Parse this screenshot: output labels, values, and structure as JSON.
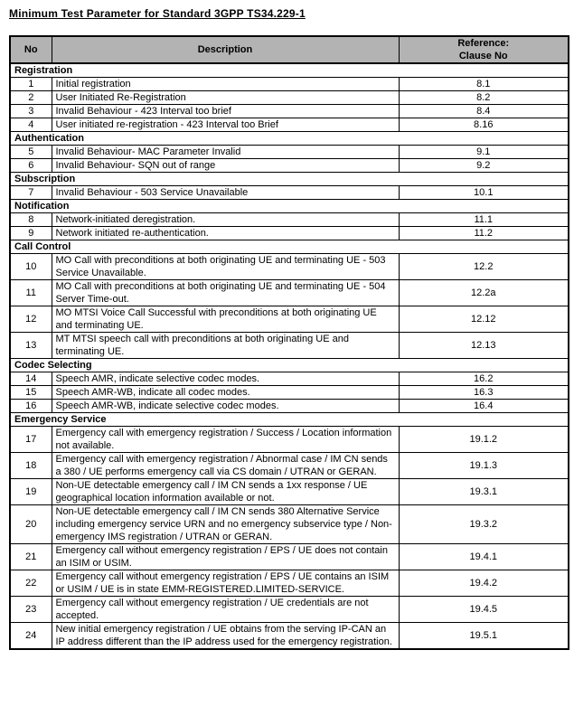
{
  "title": "Minimum Test Parameter for Standard 3GPP TS34.229-1",
  "table": {
    "header": {
      "no": "No",
      "description": "Description",
      "reference": "Reference:\nClause No"
    },
    "colors": {
      "header_bg": "#b3b3b3",
      "border": "#000000",
      "text": "#000000"
    },
    "sections": [
      {
        "name": "Registration",
        "rows": [
          {
            "no": "1",
            "description": "Initial registration",
            "ref": "8.1"
          },
          {
            "no": "2",
            "description": "User Initiated Re-Registration",
            "ref": "8.2"
          },
          {
            "no": "3",
            "description": "Invalid Behaviour - 423 Interval too brief",
            "ref": "8.4"
          },
          {
            "no": "4",
            "description": "User initiated re-registration - 423 Interval too Brief",
            "ref": "8.16"
          }
        ]
      },
      {
        "name": "Authentication",
        "rows": [
          {
            "no": "5",
            "description": "Invalid Behaviour- MAC Parameter Invalid",
            "ref": "9.1"
          },
          {
            "no": "6",
            "description": "Invalid Behaviour- SQN out of range",
            "ref": "9.2"
          }
        ]
      },
      {
        "name": "Subscription",
        "rows": [
          {
            "no": "7",
            "description": "Invalid Behaviour - 503 Service Unavailable",
            "ref": "10.1"
          }
        ]
      },
      {
        "name": "Notification",
        "rows": [
          {
            "no": "8",
            "description": "Network-initiated deregistration.",
            "ref": "11.1"
          },
          {
            "no": "9",
            "description": "Network initiated re-authentication.",
            "ref": "11.2"
          }
        ]
      },
      {
        "name": "Call Control",
        "rows": [
          {
            "no": "10",
            "description": "MO Call with preconditions at both originating UE and terminating UE - 503 Service Unavailable.",
            "ref": "12.2"
          },
          {
            "no": "11",
            "description": "MO Call with preconditions at both originating UE and terminating UE - 504 Server Time-out.",
            "ref": "12.2a"
          },
          {
            "no": "12",
            "description": "MO MTSI Voice Call Successful with preconditions at both originating UE and terminating UE.",
            "ref": "12.12"
          },
          {
            "no": "13",
            "description": "MT MTSI speech call with preconditions at both originating UE and terminating UE.",
            "ref": "12.13"
          }
        ]
      },
      {
        "name": "Codec Selecting",
        "rows": [
          {
            "no": "14",
            "description": "Speech AMR, indicate selective codec modes.",
            "ref": "16.2"
          },
          {
            "no": "15",
            "description": "Speech AMR-WB, indicate all codec modes.",
            "ref": "16.3"
          },
          {
            "no": "16",
            "description": "Speech AMR-WB, indicate selective codec modes.",
            "ref": "16.4"
          }
        ]
      },
      {
        "name": "Emergency Service",
        "rows": [
          {
            "no": "17",
            "description": "Emergency call with emergency registration / Success / Location information not available.",
            "ref": "19.1.2"
          },
          {
            "no": "18",
            "description": "Emergency call with emergency registration / Abnormal case / IM CN sends a 380 / UE performs emergency call via CS domain / UTRAN or GERAN.",
            "ref": "19.1.3"
          },
          {
            "no": "19",
            "description": "Non-UE detectable emergency call / IM CN sends a 1xx response / UE geographical location information available or not.",
            "ref": "19.3.1"
          },
          {
            "no": "20",
            "description": "Non-UE detectable emergency call / IM CN sends 380 Alternative Service including emergency service URN and no emergency subservice type / Non-emergency IMS registration / UTRAN or GERAN.",
            "ref": "19.3.2"
          },
          {
            "no": "21",
            "description": "Emergency call without emergency registration / EPS / UE does not contain an ISIM or USIM.",
            "ref": "19.4.1"
          },
          {
            "no": "22",
            "description": "Emergency call without emergency registration / EPS / UE contains an ISIM or USIM / UE is in state EMM-REGISTERED.LIMITED-SERVICE.",
            "ref": "19.4.2"
          },
          {
            "no": "23",
            "description": "Emergency call without emergency registration / UE credentials are not accepted.",
            "ref": "19.4.5"
          },
          {
            "no": "24",
            "description": "New initial emergency registration / UE obtains from the serving IP-CAN an IP address different than the IP address used for the emergency registration.",
            "ref": "19.5.1"
          }
        ]
      }
    ]
  }
}
